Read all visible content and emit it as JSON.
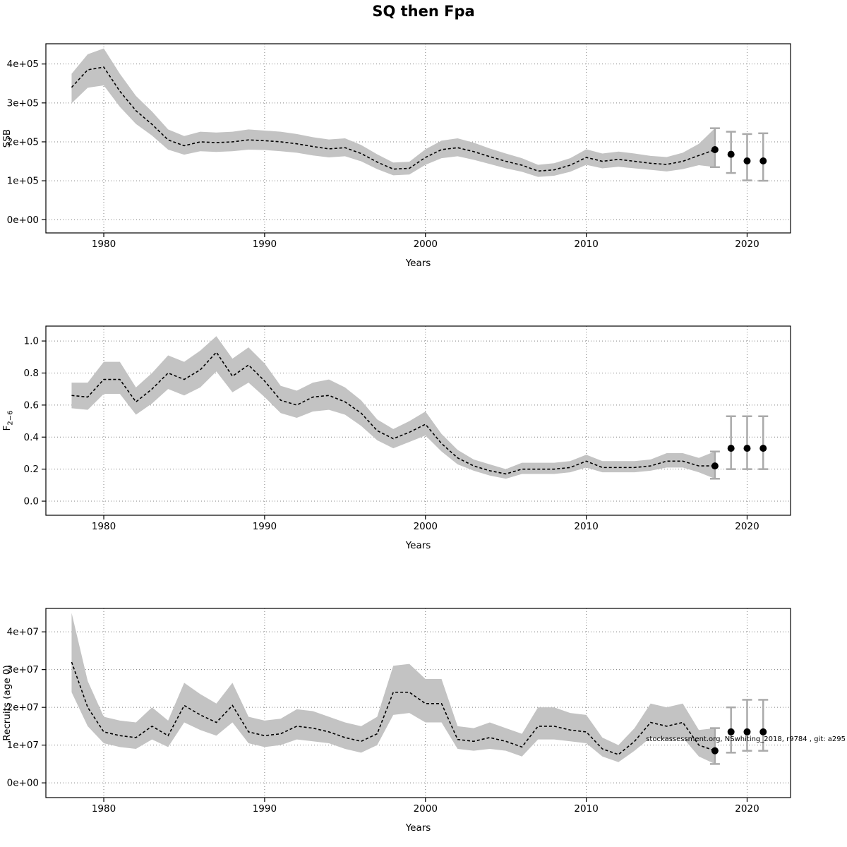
{
  "title": "SQ then Fpa",
  "watermark": "stockassessment.org, NSwhiting_2018, r9784 , git: a295",
  "colors": {
    "band": "#c3c3c3",
    "line": "#000000",
    "errorbar": "#aaaaaa",
    "grid": "#808080",
    "point": "#000000"
  },
  "chart_data": [
    {
      "type": "line",
      "name": "SSB",
      "xlabel": "Years",
      "ylabel": "SSB",
      "ylabel_sub": "",
      "xlim": [
        1976.4,
        2022.7
      ],
      "ylim": [
        -34000,
        452000
      ],
      "xticks": [
        1980,
        1990,
        2000,
        2010,
        2020
      ],
      "yticks": [
        0,
        100000,
        200000,
        300000,
        400000
      ],
      "ytick_labels": [
        "0e+00",
        "1e+05",
        "2e+05",
        "3e+05",
        "4e+05"
      ],
      "years": [
        1978,
        1979,
        1980,
        1981,
        1982,
        1983,
        1984,
        1985,
        1986,
        1987,
        1988,
        1989,
        1990,
        1991,
        1992,
        1993,
        1994,
        1995,
        1996,
        1997,
        1998,
        1999,
        2000,
        2001,
        2002,
        2003,
        2004,
        2005,
        2006,
        2007,
        2008,
        2009,
        2010,
        2011,
        2012,
        2013,
        2014,
        2015,
        2016,
        2017,
        2018
      ],
      "values": [
        340000,
        385000,
        392000,
        330000,
        280000,
        245000,
        205000,
        190000,
        200000,
        198000,
        200000,
        205000,
        203000,
        200000,
        195000,
        188000,
        182000,
        185000,
        170000,
        148000,
        130000,
        132000,
        160000,
        180000,
        185000,
        175000,
        162000,
        150000,
        140000,
        125000,
        128000,
        140000,
        160000,
        150000,
        155000,
        150000,
        145000,
        142000,
        150000,
        165000,
        180000
      ],
      "lower": [
        299000,
        339000,
        345000,
        290000,
        246000,
        216000,
        180000,
        167000,
        176000,
        174000,
        176000,
        180000,
        179000,
        176000,
        172000,
        165000,
        160000,
        163000,
        150000,
        130000,
        114000,
        116000,
        141000,
        158000,
        163000,
        154000,
        143000,
        132000,
        123000,
        110000,
        113000,
        123000,
        141000,
        132000,
        136000,
        132000,
        128000,
        124000,
        130000,
        140000,
        135000
      ],
      "upper": [
        375000,
        425000,
        440000,
        375000,
        318000,
        278000,
        232000,
        215000,
        226000,
        224000,
        226000,
        232000,
        229000,
        226000,
        220000,
        212000,
        206000,
        209000,
        192000,
        168000,
        147000,
        149000,
        181000,
        203000,
        209000,
        198000,
        183000,
        170000,
        158000,
        141000,
        145000,
        158000,
        181000,
        170000,
        175000,
        170000,
        164000,
        161000,
        172000,
        195000,
        235000
      ],
      "forecast": {
        "years": [
          2018,
          2019,
          2020,
          2021
        ],
        "values": [
          180000,
          168000,
          151000,
          151000
        ],
        "lower": [
          135000,
          120000,
          101000,
          100000
        ],
        "upper": [
          235000,
          226000,
          220000,
          222000
        ]
      }
    },
    {
      "type": "line",
      "name": "Fbar",
      "xlabel": "Years",
      "ylabel": "F",
      "ylabel_sub": "2−6",
      "xlim": [
        1976.4,
        2022.7
      ],
      "ylim": [
        -0.088,
        1.093
      ],
      "xticks": [
        1980,
        1990,
        2000,
        2010,
        2020
      ],
      "yticks": [
        0.0,
        0.2,
        0.4,
        0.6,
        0.8,
        1.0
      ],
      "ytick_labels": [
        "0.0",
        "0.2",
        "0.4",
        "0.6",
        "0.8",
        "1.0"
      ],
      "years": [
        1978,
        1979,
        1980,
        1981,
        1982,
        1983,
        1984,
        1985,
        1986,
        1987,
        1988,
        1989,
        1990,
        1991,
        1992,
        1993,
        1994,
        1995,
        1996,
        1997,
        1998,
        1999,
        2000,
        2001,
        2002,
        2003,
        2004,
        2005,
        2006,
        2007,
        2008,
        2009,
        2010,
        2011,
        2012,
        2013,
        2014,
        2015,
        2016,
        2017,
        2018
      ],
      "values": [
        0.66,
        0.65,
        0.76,
        0.76,
        0.62,
        0.7,
        0.8,
        0.76,
        0.82,
        0.93,
        0.78,
        0.85,
        0.75,
        0.63,
        0.6,
        0.65,
        0.66,
        0.62,
        0.55,
        0.44,
        0.39,
        0.43,
        0.48,
        0.36,
        0.27,
        0.22,
        0.19,
        0.17,
        0.2,
        0.2,
        0.2,
        0.21,
        0.25,
        0.21,
        0.21,
        0.21,
        0.22,
        0.25,
        0.25,
        0.22,
        0.22
      ],
      "lower": [
        0.58,
        0.57,
        0.67,
        0.67,
        0.54,
        0.61,
        0.7,
        0.66,
        0.71,
        0.81,
        0.68,
        0.74,
        0.65,
        0.55,
        0.52,
        0.56,
        0.57,
        0.54,
        0.47,
        0.38,
        0.33,
        0.37,
        0.41,
        0.31,
        0.23,
        0.19,
        0.16,
        0.14,
        0.17,
        0.17,
        0.17,
        0.18,
        0.21,
        0.18,
        0.18,
        0.18,
        0.19,
        0.21,
        0.21,
        0.18,
        0.14
      ],
      "upper": [
        0.74,
        0.74,
        0.87,
        0.87,
        0.71,
        0.8,
        0.91,
        0.87,
        0.94,
        1.03,
        0.89,
        0.96,
        0.86,
        0.72,
        0.69,
        0.74,
        0.76,
        0.71,
        0.63,
        0.51,
        0.45,
        0.5,
        0.56,
        0.42,
        0.32,
        0.26,
        0.23,
        0.2,
        0.24,
        0.24,
        0.24,
        0.25,
        0.29,
        0.25,
        0.25,
        0.25,
        0.26,
        0.3,
        0.3,
        0.27,
        0.31
      ],
      "forecast": {
        "years": [
          2018,
          2019,
          2020,
          2021
        ],
        "values": [
          0.22,
          0.33,
          0.33,
          0.33
        ],
        "lower": [
          0.14,
          0.2,
          0.2,
          0.2
        ],
        "upper": [
          0.31,
          0.53,
          0.53,
          0.53
        ]
      }
    },
    {
      "type": "line",
      "name": "Recruits",
      "xlabel": "Years",
      "ylabel": "Recruits (age 0)",
      "ylabel_sub": "",
      "xlim": [
        1976.4,
        2022.7
      ],
      "ylim": [
        -3900000,
        46200000
      ],
      "xticks": [
        1980,
        1990,
        2000,
        2010,
        2020
      ],
      "yticks": [
        0,
        10000000,
        20000000,
        30000000,
        40000000
      ],
      "ytick_labels": [
        "0e+00",
        "1e+07",
        "2e+07",
        "3e+07",
        "4e+07"
      ],
      "years": [
        1978,
        1979,
        1980,
        1981,
        1982,
        1983,
        1984,
        1985,
        1986,
        1987,
        1988,
        1989,
        1990,
        1991,
        1992,
        1993,
        1994,
        1995,
        1996,
        1997,
        1998,
        1999,
        2000,
        2001,
        2002,
        2003,
        2004,
        2005,
        2006,
        2007,
        2008,
        2009,
        2010,
        2011,
        2012,
        2013,
        2014,
        2015,
        2016,
        2017,
        2018
      ],
      "values": [
        32000000,
        20000000,
        13500000,
        12500000,
        12000000,
        15000000,
        12500000,
        20500000,
        18000000,
        16000000,
        20500000,
        13500000,
        12500000,
        13000000,
        15000000,
        14500000,
        13500000,
        12000000,
        11000000,
        13000000,
        24000000,
        24000000,
        21000000,
        21000000,
        11500000,
        11000000,
        12000000,
        11000000,
        9500000,
        15000000,
        15000000,
        14000000,
        13500000,
        9000000,
        7500000,
        11000000,
        16000000,
        15000000,
        16000000,
        10000000,
        8500000
      ],
      "lower": [
        24000000,
        15000000,
        10500000,
        9500000,
        9000000,
        11500000,
        9500000,
        16000000,
        14000000,
        12500000,
        16000000,
        10500000,
        9500000,
        10000000,
        11500000,
        11000000,
        10500000,
        9000000,
        8000000,
        10000000,
        18000000,
        18500000,
        16000000,
        16000000,
        9000000,
        8500000,
        9000000,
        8500000,
        7000000,
        11500000,
        11500000,
        11000000,
        10500000,
        7000000,
        5500000,
        8500000,
        12000000,
        11500000,
        12000000,
        7000000,
        5000000
      ],
      "upper": [
        45000000,
        27000000,
        17500000,
        16500000,
        16000000,
        20000000,
        16500000,
        26500000,
        23500000,
        21000000,
        26500000,
        17500000,
        16500000,
        17000000,
        19500000,
        19000000,
        17500000,
        16000000,
        15000000,
        17500000,
        31000000,
        31500000,
        27500000,
        27500000,
        15000000,
        14500000,
        16000000,
        14500000,
        13000000,
        20000000,
        20000000,
        18500000,
        18000000,
        12000000,
        10000000,
        14500000,
        21000000,
        20000000,
        21000000,
        14000000,
        14500000
      ],
      "forecast": {
        "years": [
          2018,
          2019,
          2020,
          2021
        ],
        "values": [
          8500000,
          13500000,
          13500000,
          13500000
        ],
        "lower": [
          5000000,
          8000000,
          8500000,
          8500000
        ],
        "upper": [
          14500000,
          20000000,
          22000000,
          22000000
        ]
      }
    }
  ]
}
